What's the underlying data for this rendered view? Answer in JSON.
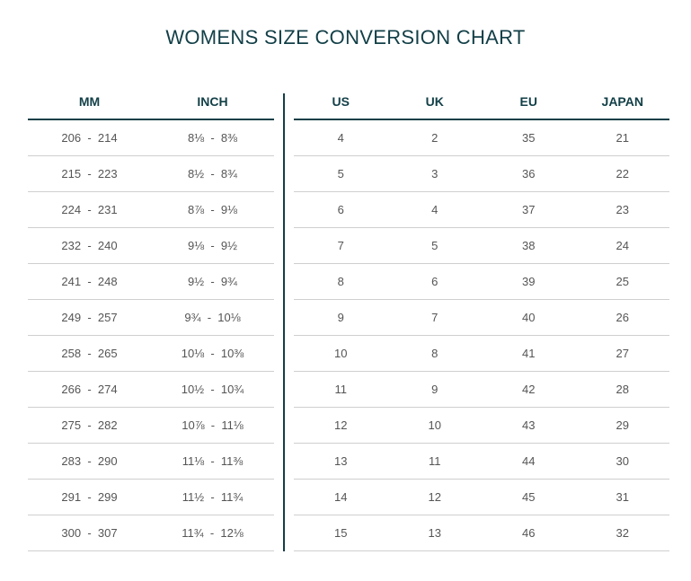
{
  "title": "WOMENS SIZE CONVERSION CHART",
  "left_table": {
    "headers": [
      "MM",
      "INCH"
    ],
    "rows": [
      {
        "mm": "206  -  214",
        "inch": "8⅛  -  8⅜"
      },
      {
        "mm": "215  -  223",
        "inch": "8½  -  8¾"
      },
      {
        "mm": "224  -  231",
        "inch": "8⅞  -  9⅛"
      },
      {
        "mm": "232  -  240",
        "inch": "9⅛  -  9½"
      },
      {
        "mm": "241  -  248",
        "inch": "9½  -  9¾"
      },
      {
        "mm": "249  -  257",
        "inch": "9¾  -  10⅛"
      },
      {
        "mm": "258  -  265",
        "inch": "10⅛  -  10⅜"
      },
      {
        "mm": "266  -  274",
        "inch": "10½  -  10¾"
      },
      {
        "mm": "275  -  282",
        "inch": "10⅞  -  11⅛"
      },
      {
        "mm": "283  -  290",
        "inch": "11⅛  -  11⅜"
      },
      {
        "mm": "291  -  299",
        "inch": "11½  -  11¾"
      },
      {
        "mm": "300  -  307",
        "inch": "11¾  -  12⅛"
      }
    ]
  },
  "right_table": {
    "headers": [
      "US",
      "UK",
      "EU",
      "JAPAN"
    ],
    "rows": [
      [
        "4",
        "2",
        "35",
        "21"
      ],
      [
        "5",
        "3",
        "36",
        "22"
      ],
      [
        "6",
        "4",
        "37",
        "23"
      ],
      [
        "7",
        "5",
        "38",
        "24"
      ],
      [
        "8",
        "6",
        "39",
        "25"
      ],
      [
        "9",
        "7",
        "40",
        "26"
      ],
      [
        "10",
        "8",
        "41",
        "27"
      ],
      [
        "11",
        "9",
        "42",
        "28"
      ],
      [
        "12",
        "10",
        "43",
        "29"
      ],
      [
        "13",
        "11",
        "44",
        "30"
      ],
      [
        "14",
        "12",
        "45",
        "31"
      ],
      [
        "15",
        "13",
        "46",
        "32"
      ]
    ]
  },
  "colors": {
    "heading": "#123f47",
    "text": "#555555",
    "rule": "#cfcfcf"
  }
}
